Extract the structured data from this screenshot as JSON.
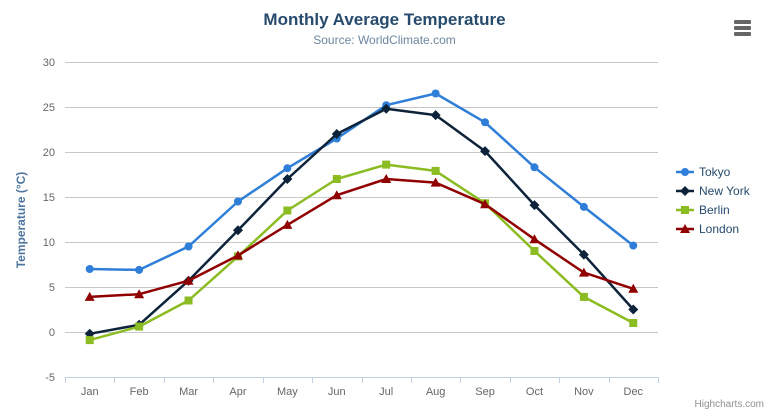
{
  "chart": {
    "title": "Monthly Average Temperature",
    "subtitle": "Source: WorldClimate.com",
    "credit": "Highcharts.com"
  },
  "icons": {
    "context_menu": "hamburger-icon"
  },
  "colors": {
    "title": "#274b6d",
    "subtitle": "#6d869f",
    "axis_title": "#4d759e",
    "axis_label": "#666666",
    "grid_line": "#c8c8c8",
    "axis_line": "#c0d0e0",
    "legend_text": "#274b6d",
    "credit": "#909090",
    "hamburger": "#666666"
  },
  "chart_data": {
    "type": "line",
    "title": "Monthly Average Temperature",
    "subtitle": "Source: WorldClimate.com",
    "xlabel": "",
    "ylabel": "Temperature (°C)",
    "categories": [
      "Jan",
      "Feb",
      "Mar",
      "Apr",
      "May",
      "Jun",
      "Jul",
      "Aug",
      "Sep",
      "Oct",
      "Nov",
      "Dec"
    ],
    "ylim": [
      -5,
      30
    ],
    "ytick_interval": 5,
    "grid": true,
    "legend_position": "right-middle",
    "series": [
      {
        "name": "Tokyo",
        "color": "#2f7ed8",
        "marker": "circle",
        "values": [
          7.0,
          6.9,
          9.5,
          14.5,
          18.2,
          21.5,
          25.2,
          26.5,
          23.3,
          18.3,
          13.9,
          9.6
        ]
      },
      {
        "name": "New York",
        "color": "#0d233a",
        "marker": "diamond",
        "values": [
          -0.2,
          0.8,
          5.7,
          11.3,
          17.0,
          22.0,
          24.8,
          24.1,
          20.1,
          14.1,
          8.6,
          2.5
        ]
      },
      {
        "name": "Berlin",
        "color": "#8bbc21",
        "marker": "square",
        "values": [
          -0.9,
          0.6,
          3.5,
          8.4,
          13.5,
          17.0,
          18.6,
          17.9,
          14.3,
          9.0,
          3.9,
          1.0
        ]
      },
      {
        "name": "London",
        "color": "#910000",
        "marker": "triangle",
        "values": [
          3.9,
          4.2,
          5.7,
          8.5,
          11.9,
          15.2,
          17.0,
          16.6,
          14.2,
          10.3,
          6.6,
          4.8
        ]
      }
    ]
  }
}
